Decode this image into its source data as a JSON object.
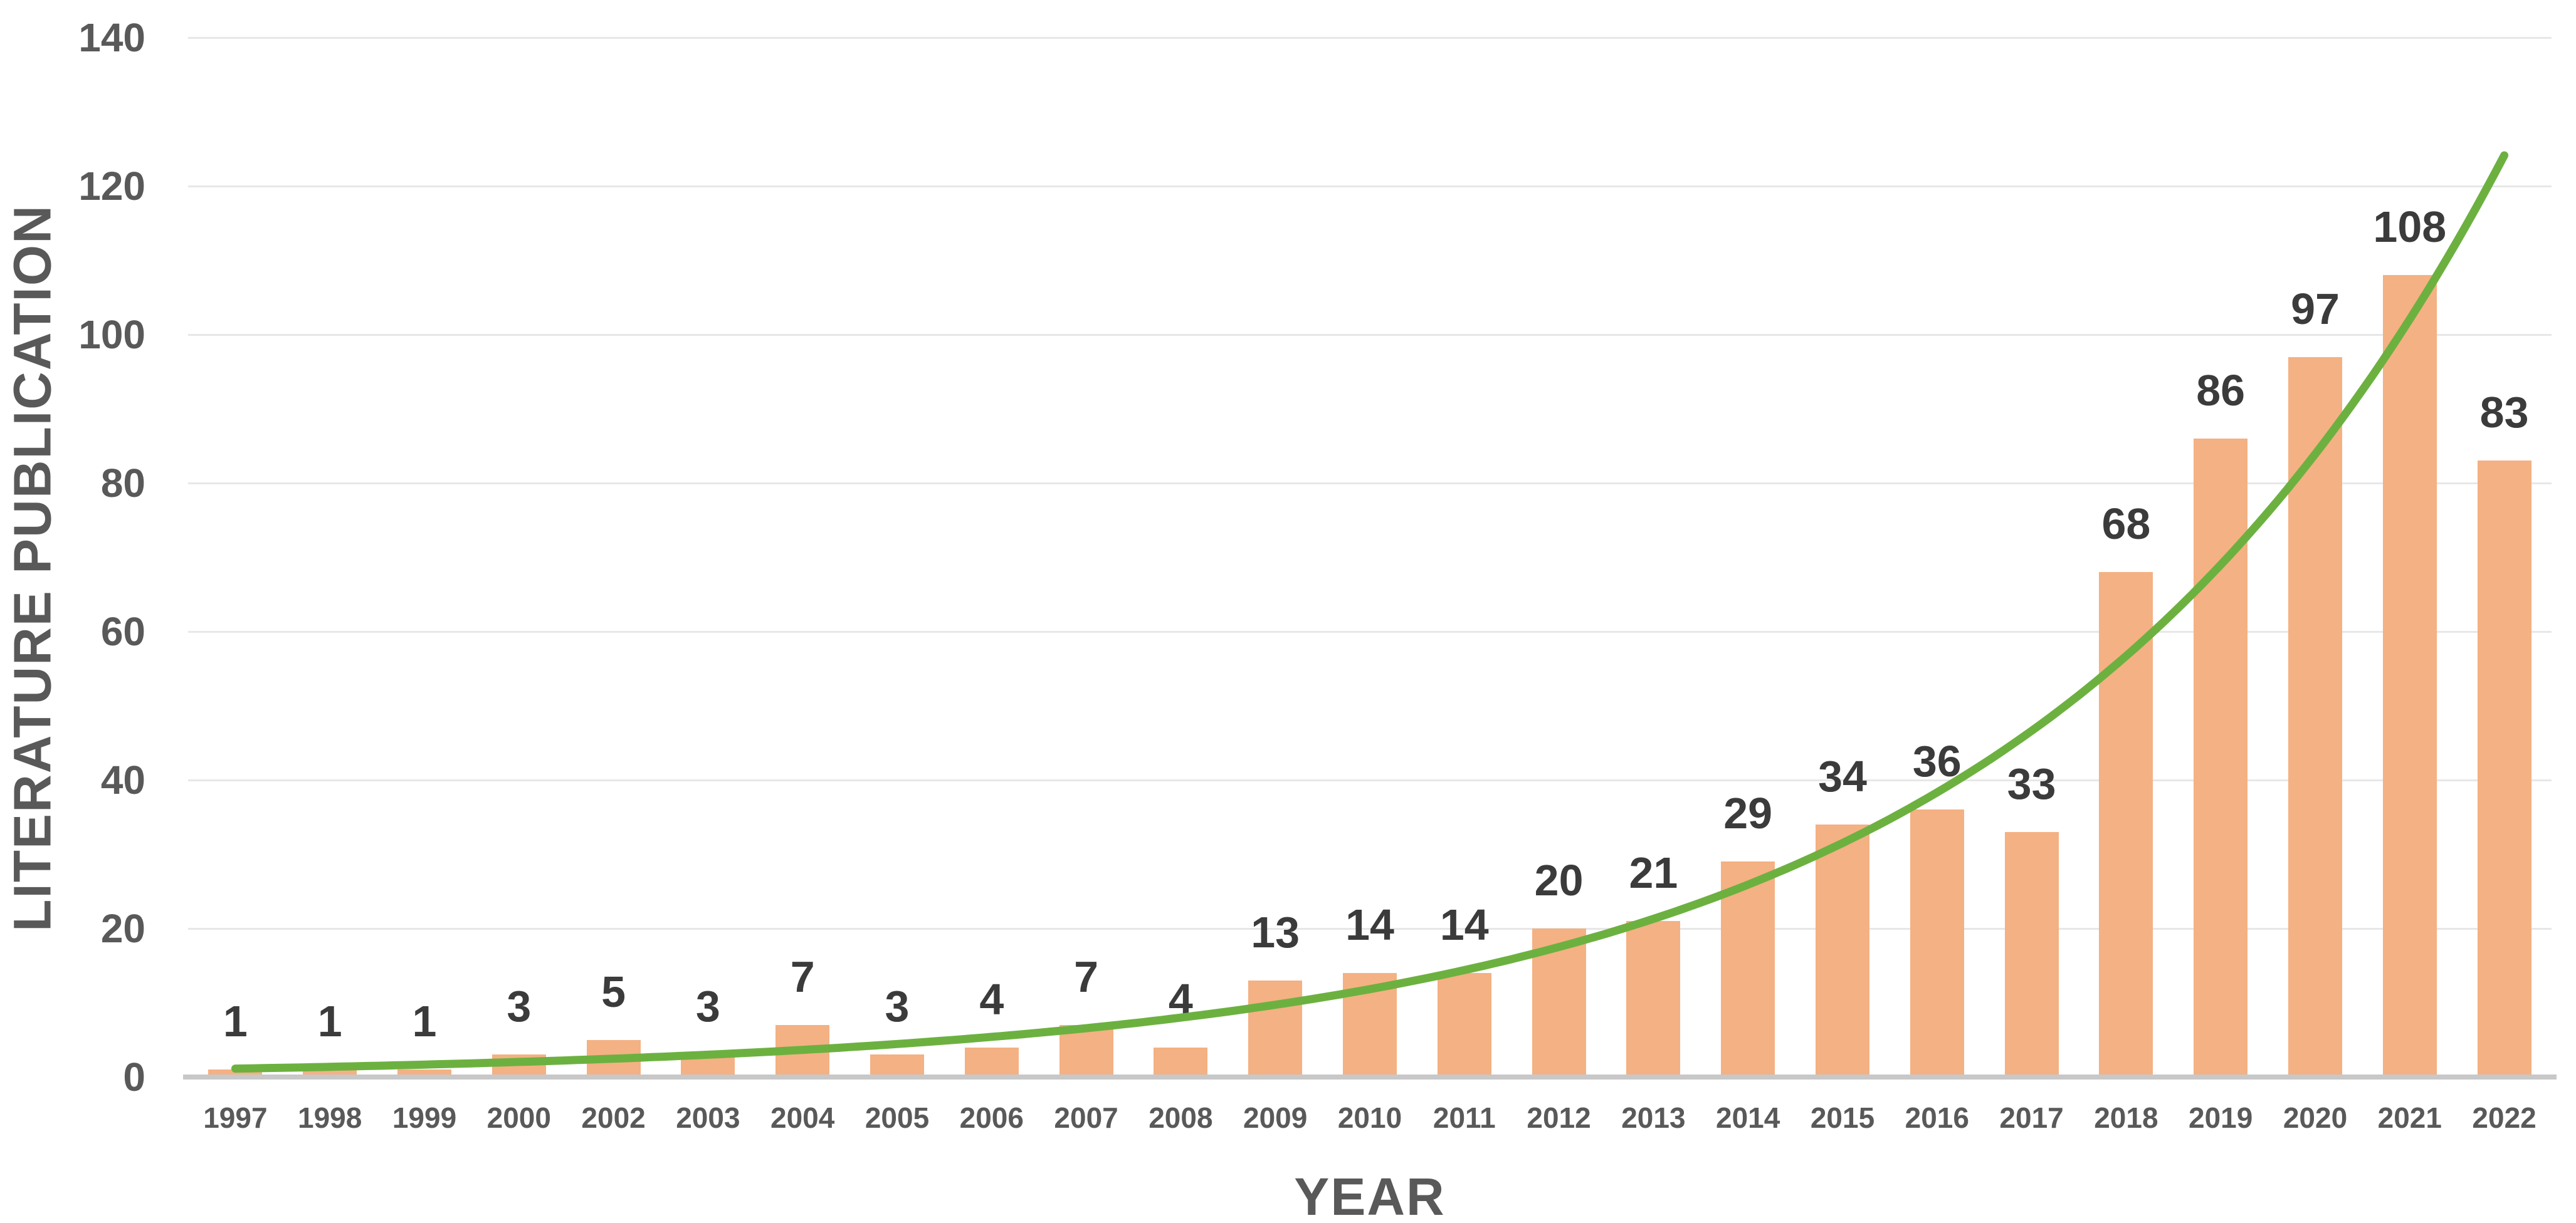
{
  "chart_data": {
    "type": "bar",
    "title": "",
    "categories": [
      "1997",
      "1998",
      "1999",
      "2000",
      "2002",
      "2003",
      "2004",
      "2005",
      "2006",
      "2007",
      "2008",
      "2009",
      "2010",
      "2011",
      "2012",
      "2013",
      "2014",
      "2015",
      "2016",
      "2017",
      "2018",
      "2019",
      "2020",
      "2021",
      "2022"
    ],
    "values": [
      1,
      1,
      1,
      3,
      5,
      3,
      7,
      3,
      4,
      7,
      4,
      13,
      14,
      14,
      20,
      21,
      29,
      34,
      36,
      33,
      68,
      86,
      97,
      108,
      83
    ],
    "xlabel": "YEAR",
    "ylabel": "LITERATURE PUBLICATION",
    "ylim": [
      0,
      140
    ],
    "yticks": [
      0,
      20,
      40,
      60,
      80,
      100,
      120,
      140
    ],
    "grid": "horizontal-light",
    "legend_position": "none",
    "bar_color": "#F4B183",
    "trendline": {
      "type": "exponential",
      "color": "#6CB140",
      "description": "smooth exponential trend curve fitted through yearly publication counts, ending near 124 at 2022"
    },
    "data_label_color": "#3b3b3b",
    "axis_text_color": "#595959",
    "gridline_color": "#e7e7e7",
    "axis_line_color": "#c8c8c8"
  }
}
